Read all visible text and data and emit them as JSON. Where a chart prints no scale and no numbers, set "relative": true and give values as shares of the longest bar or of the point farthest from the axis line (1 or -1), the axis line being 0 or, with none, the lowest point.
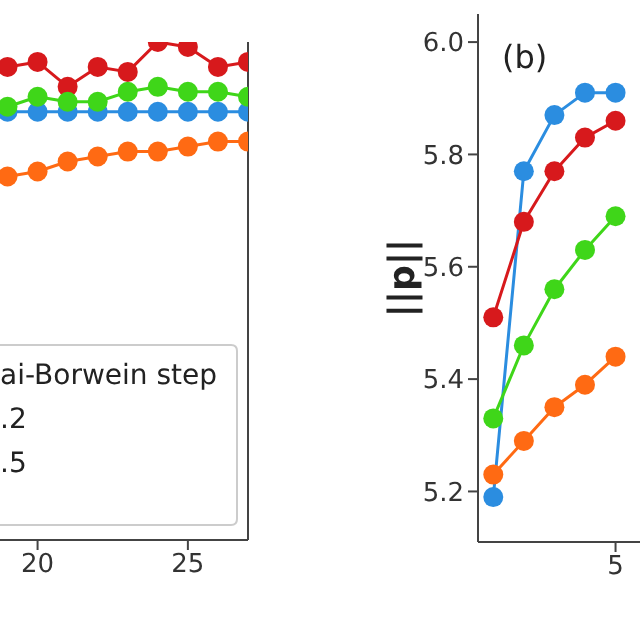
{
  "chart_data": [
    {
      "type": "line",
      "relative": true,
      "x": [
        19,
        20,
        21,
        22,
        23,
        24,
        25,
        26,
        27
      ],
      "xlim": [
        18.75,
        27
      ],
      "xticks": [
        20,
        25
      ],
      "marker": "circle",
      "line_style": "solid",
      "grid": false,
      "legend": false,
      "annotations": [
        "ai-Borwein step",
        ".2",
        ".5"
      ],
      "series": [
        {
          "color": "#d7191c",
          "values": [
            0.95,
            0.96,
            0.91,
            0.95,
            0.94,
            1.0,
            0.99,
            0.95,
            0.96
          ]
        },
        {
          "color": "#2b8de0",
          "values": [
            0.86,
            0.86,
            0.86,
            0.86,
            0.86,
            0.86,
            0.86,
            0.86,
            0.86
          ]
        },
        {
          "color": "#3fd619",
          "values": [
            0.87,
            0.89,
            0.88,
            0.88,
            0.9,
            0.91,
            0.9,
            0.9,
            0.89
          ]
        },
        {
          "color": "#ff6a13",
          "values": [
            0.73,
            0.74,
            0.76,
            0.77,
            0.78,
            0.78,
            0.79,
            0.8,
            0.8
          ]
        }
      ]
    },
    {
      "type": "line",
      "categories": [
        null,
        null,
        null,
        null,
        "5"
      ],
      "ylim": [
        5.11,
        6.05
      ],
      "yticks": [
        {
          "value": 5.2,
          "label": "5.2"
        },
        {
          "value": 5.4,
          "label": "5.4"
        },
        {
          "value": 5.6,
          "label": "5.6"
        },
        {
          "value": 5.8,
          "label": "5.8"
        },
        {
          "value": 6.0,
          "label": "6.0"
        }
      ],
      "ylabel": "||p||",
      "marker": "circle",
      "line_style": "solid",
      "grid": false,
      "legend": false,
      "annotations": [
        "(b)"
      ],
      "series": [
        {
          "color": "#2b8de0",
          "values": [
            5.19,
            5.77,
            5.87,
            5.91,
            5.91
          ]
        },
        {
          "color": "#d7191c",
          "values": [
            5.51,
            5.68,
            5.77,
            5.83,
            5.86
          ]
        },
        {
          "color": "#3fd619",
          "values": [
            5.33,
            5.46,
            5.56,
            5.63,
            5.69
          ]
        },
        {
          "color": "#ff6a13",
          "values": [
            5.23,
            5.29,
            5.35,
            5.39,
            5.44
          ]
        }
      ]
    }
  ]
}
